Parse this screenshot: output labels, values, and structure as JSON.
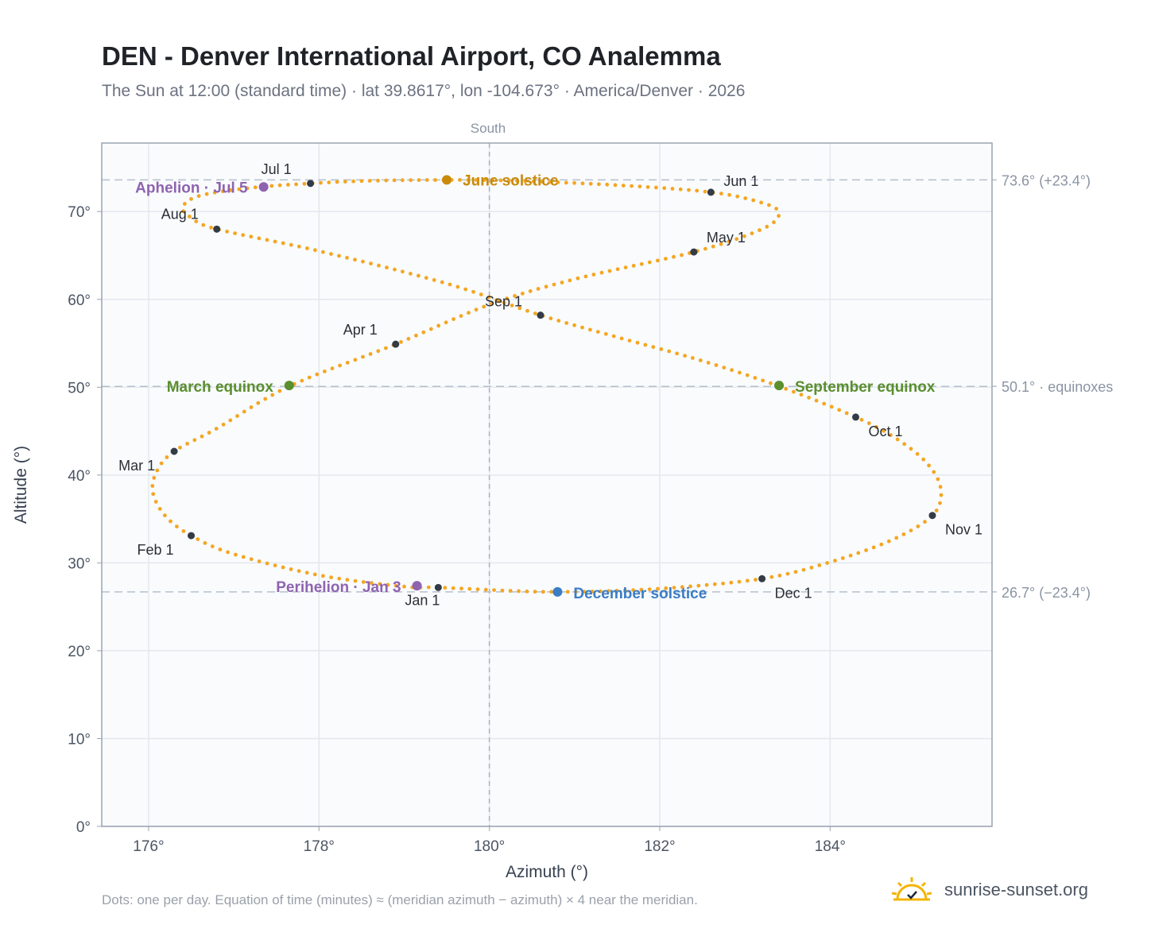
{
  "header": {
    "title": "DEN - Denver International Airport, CO Analemma",
    "subtitle": "The Sun at 12:00 (standard time) · lat 39.8617°, lon -104.673° · America/Denver · 2026"
  },
  "footer": {
    "note": "Dots: one per day. Equation of time (minutes) ≈ (meridian azimuth − azimuth) × 4 near the meridian.",
    "brand": "sunrise-sunset.org",
    "brand_icon": "sun-check-icon"
  },
  "chart_data": {
    "type": "scatter",
    "xlabel": "Azimuth (°)",
    "ylabel": "Altitude (°)",
    "xlim": [
      175.45,
      185.9
    ],
    "ylim": [
      0,
      77.8
    ],
    "x_ticks": [
      176,
      178,
      180,
      182,
      184
    ],
    "x_tick_labels": [
      "176°",
      "178°",
      "180°",
      "182°",
      "184°"
    ],
    "y_ticks": [
      0,
      10,
      20,
      30,
      40,
      50,
      60,
      70
    ],
    "y_tick_labels": [
      "0°",
      "10°",
      "20°",
      "30°",
      "40°",
      "50°",
      "60°",
      "70°"
    ],
    "grid": true,
    "meridian": {
      "azimuth": 180,
      "label": "South"
    },
    "reference_lines": [
      {
        "altitude": 73.6,
        "label": "73.6° (+23.4°)"
      },
      {
        "altitude": 50.1,
        "label": "50.1° · equinoxes"
      },
      {
        "altitude": 26.7,
        "label": "26.7° (−23.4°)"
      }
    ],
    "month_markers": [
      {
        "label": "Jan 1",
        "azimuth": 179.4,
        "altitude": 27.2
      },
      {
        "label": "Feb 1",
        "azimuth": 176.5,
        "altitude": 33.1
      },
      {
        "label": "Mar 1",
        "azimuth": 176.3,
        "altitude": 42.7
      },
      {
        "label": "Apr 1",
        "azimuth": 178.9,
        "altitude": 54.9
      },
      {
        "label": "May 1",
        "azimuth": 182.4,
        "altitude": 65.4
      },
      {
        "label": "Jun 1",
        "azimuth": 182.6,
        "altitude": 72.2
      },
      {
        "label": "Jul 1",
        "azimuth": 177.9,
        "altitude": 73.2
      },
      {
        "label": "Aug 1",
        "azimuth": 176.8,
        "altitude": 68.0
      },
      {
        "label": "Sep 1",
        "azimuth": 180.6,
        "altitude": 58.2
      },
      {
        "label": "Oct 1",
        "azimuth": 184.3,
        "altitude": 46.6
      },
      {
        "label": "Nov 1",
        "azimuth": 185.2,
        "altitude": 35.4
      },
      {
        "label": "Dec 1",
        "azimuth": 183.2,
        "altitude": 28.2
      }
    ],
    "events": [
      {
        "label": "June solstice",
        "azimuth": 179.5,
        "altitude": 73.6,
        "color": "#c98a0b"
      },
      {
        "label": "Aphelion · Jul 5",
        "azimuth": 177.35,
        "altitude": 72.8,
        "color": "#8e63b0"
      },
      {
        "label": "March equinox",
        "azimuth": 177.65,
        "altitude": 50.2,
        "color": "#5a8f2e"
      },
      {
        "label": "September equinox",
        "azimuth": 183.4,
        "altitude": 50.2,
        "color": "#5a8f2e"
      },
      {
        "label": "Perihelion · Jan 3",
        "azimuth": 179.15,
        "altitude": 27.4,
        "color": "#8e63b0"
      },
      {
        "label": "December solstice",
        "azimuth": 180.8,
        "altitude": 26.7,
        "color": "#3b7dc4"
      }
    ],
    "daily_path": [
      [
        179.0,
        27.3
      ],
      [
        178.0,
        28.6
      ],
      [
        177.0,
        31.0
      ],
      [
        176.5,
        33.1
      ],
      [
        176.2,
        35.3
      ],
      [
        176.05,
        38.0
      ],
      [
        176.1,
        40.5
      ],
      [
        176.3,
        42.7
      ],
      [
        176.8,
        45.3
      ],
      [
        177.65,
        50.1
      ],
      [
        178.9,
        54.9
      ],
      [
        180.0,
        59.4
      ],
      [
        181.0,
        62.3
      ],
      [
        182.4,
        65.4
      ],
      [
        183.2,
        68.0
      ],
      [
        183.4,
        69.8
      ],
      [
        183.2,
        71.0
      ],
      [
        182.6,
        72.2
      ],
      [
        181.5,
        73.0
      ],
      [
        180.3,
        73.5
      ],
      [
        179.5,
        73.6
      ],
      [
        178.6,
        73.5
      ],
      [
        177.9,
        73.2
      ],
      [
        177.2,
        72.7
      ],
      [
        176.6,
        71.8
      ],
      [
        176.4,
        70.5
      ],
      [
        176.5,
        69.3
      ],
      [
        176.8,
        68.0
      ],
      [
        178.0,
        65.5
      ],
      [
        179.5,
        61.8
      ],
      [
        180.6,
        58.2
      ],
      [
        181.5,
        55.7
      ],
      [
        182.5,
        53.0
      ],
      [
        183.4,
        50.1
      ],
      [
        184.3,
        46.6
      ],
      [
        184.8,
        44.0
      ],
      [
        185.15,
        41.2
      ],
      [
        185.3,
        38.3
      ],
      [
        185.2,
        35.4
      ],
      [
        184.7,
        32.5
      ],
      [
        183.9,
        29.8
      ],
      [
        183.2,
        28.2
      ],
      [
        182.2,
        27.2
      ],
      [
        181.4,
        26.8
      ],
      [
        180.8,
        26.7
      ],
      [
        180.3,
        26.8
      ],
      [
        179.4,
        27.2
      ],
      [
        179.0,
        27.3
      ]
    ],
    "colors": {
      "path": "#f4a622",
      "marker": "#333b45",
      "plot_bg": "#f9fbfd",
      "grid": "#e3e8ee"
    }
  }
}
